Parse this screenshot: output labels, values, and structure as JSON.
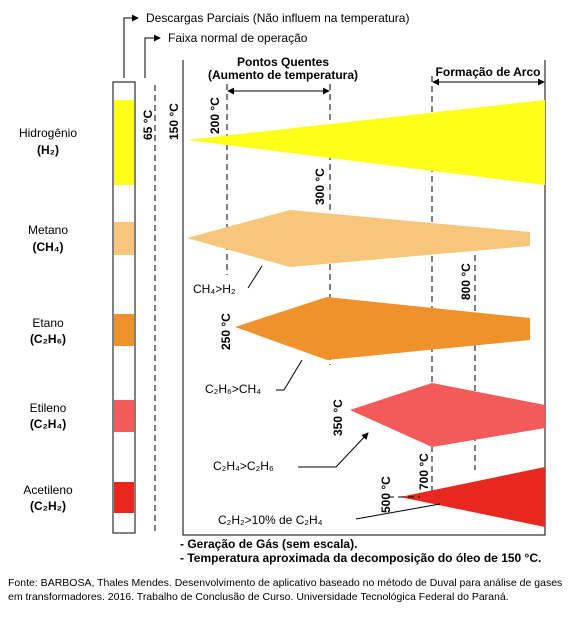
{
  "header": {
    "partial_discharge": "Descargas Parciais (Não influem na temperatura)",
    "normal_range": "Faixa normal de operação",
    "t65": "65 °C",
    "t150": "150 °C",
    "hot_spots": "Pontos Quentes",
    "hot_spots_sub": "(Aumento de temperatura)",
    "arc": "Formação de Arco"
  },
  "gases": [
    {
      "name": "Hidrogênio",
      "formula": "(H₂)"
    },
    {
      "name": "Metano",
      "formula": "(CH₄)"
    },
    {
      "name": "Etano",
      "formula": "(C₂H₆)"
    },
    {
      "name": "Etileno",
      "formula": "(C₂H₄)"
    },
    {
      "name": "Acetileno",
      "formula": "(C₂H₂)"
    }
  ],
  "temperatures": [
    "200 °C",
    "300 °C",
    "250 °C",
    "350 °C",
    "500 °C",
    "700 °C",
    "800 °C"
  ],
  "annotations": [
    "CH₄>H₂",
    "C₂H₆>CH₄",
    "C₂H₄>C₂H₆",
    "C₂H₂>10% de C₂H₄"
  ],
  "notes": [
    "- Geração de Gás (sem escala).",
    "- Temperatura aproximada da decomposição do óleo de 150 °C."
  ],
  "source": "Fonte: BARBOSA, Thales Mendes. Desenvolvimento de aplicativo baseado no método de Duval para análise de gases em transformadores. 2016. Trabalho de Conclusão de Curso. Universidade Tecnológica Federal do Paraná."
}
